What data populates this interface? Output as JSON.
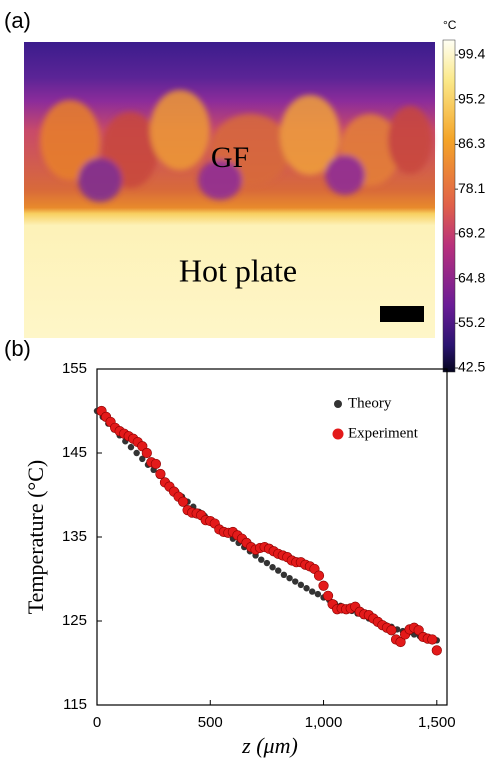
{
  "panel_a": {
    "label": "(a)",
    "gf_label": "GF",
    "plate_label": "Hot plate",
    "colorbar": {
      "unit": "°C",
      "ticks": [
        99.4,
        95.2,
        86.3,
        78.1,
        69.2,
        64.8,
        55.2,
        42.5
      ]
    }
  },
  "chart_data": {
    "type": "scatter",
    "label": "(b)",
    "xlabel": "z (μm)",
    "ylabel": "Temperature (°C)",
    "xlim": [
      0,
      1545
    ],
    "ylim": [
      115,
      155
    ],
    "xticks": [
      0,
      500,
      {
        "value": 1000,
        "label": "1,000"
      },
      {
        "value": 1500,
        "label": "1,500"
      }
    ],
    "yticks": [
      115,
      125,
      135,
      145,
      155
    ],
    "legend": "top-right",
    "series": [
      {
        "name": "Theory",
        "color": "#333333",
        "x": [
          0,
          25,
          50,
          75,
          100,
          125,
          150,
          175,
          200,
          225,
          250,
          275,
          300,
          325,
          350,
          375,
          400,
          425,
          450,
          475,
          500,
          525,
          550,
          575,
          600,
          625,
          650,
          675,
          700,
          725,
          750,
          775,
          800,
          825,
          850,
          875,
          900,
          925,
          950,
          975,
          1000,
          1025,
          1050,
          1075,
          1100,
          1125,
          1150,
          1175,
          1200,
          1225,
          1250,
          1275,
          1300,
          1325,
          1350,
          1375,
          1400,
          1425,
          1450,
          1475,
          1500
        ],
        "values": [
          150.0,
          149.3,
          148.5,
          147.8,
          147.1,
          146.4,
          145.7,
          145.0,
          144.3,
          143.6,
          143.0,
          142.3,
          141.7,
          141.0,
          140.4,
          139.8,
          139.2,
          138.6,
          138.0,
          137.5,
          136.9,
          136.4,
          135.8,
          135.3,
          134.8,
          134.3,
          133.8,
          133.3,
          132.8,
          132.3,
          131.9,
          131.4,
          131.0,
          130.5,
          130.1,
          129.7,
          129.3,
          128.9,
          128.5,
          128.2,
          127.8,
          127.5,
          127.1,
          126.8,
          126.5,
          126.2,
          125.9,
          125.6,
          125.3,
          125.0,
          124.8,
          124.5,
          124.3,
          124.0,
          123.8,
          123.6,
          123.4,
          123.2,
          123.0,
          122.9,
          122.7
        ]
      },
      {
        "name": "Experiment",
        "color": "#e31a1a",
        "x": [
          20,
          40,
          60,
          80,
          100,
          120,
          140,
          160,
          180,
          200,
          220,
          240,
          260,
          280,
          300,
          320,
          340,
          360,
          380,
          400,
          420,
          440,
          460,
          480,
          500,
          520,
          540,
          560,
          580,
          600,
          620,
          640,
          660,
          680,
          700,
          720,
          740,
          760,
          780,
          800,
          820,
          840,
          860,
          880,
          900,
          920,
          940,
          960,
          980,
          1000,
          1020,
          1040,
          1060,
          1080,
          1100,
          1120,
          1140,
          1160,
          1180,
          1200,
          1220,
          1240,
          1260,
          1280,
          1300,
          1320,
          1340,
          1360,
          1380,
          1400,
          1420,
          1440,
          1460,
          1480,
          1500
        ],
        "values": [
          150.0,
          149.3,
          148.7,
          148.0,
          147.6,
          147.3,
          147.0,
          146.7,
          146.3,
          145.8,
          145.0,
          143.9,
          143.7,
          142.5,
          141.5,
          141.0,
          140.4,
          139.8,
          139.2,
          138.2,
          137.9,
          137.8,
          137.6,
          137.0,
          136.9,
          136.6,
          135.9,
          135.6,
          135.5,
          135.6,
          135.2,
          134.8,
          134.3,
          133.8,
          133.5,
          133.7,
          133.8,
          133.6,
          133.3,
          133.0,
          132.8,
          132.6,
          132.2,
          132.0,
          132.0,
          131.7,
          131.5,
          131.2,
          130.4,
          129.2,
          128.0,
          127.0,
          126.4,
          126.5,
          126.4,
          126.5,
          126.7,
          126.1,
          125.8,
          125.7,
          125.3,
          124.9,
          124.5,
          124.2,
          123.9,
          122.8,
          122.5,
          123.4,
          124.0,
          124.2,
          123.9,
          123.1,
          122.9,
          122.8,
          121.5
        ]
      }
    ]
  }
}
